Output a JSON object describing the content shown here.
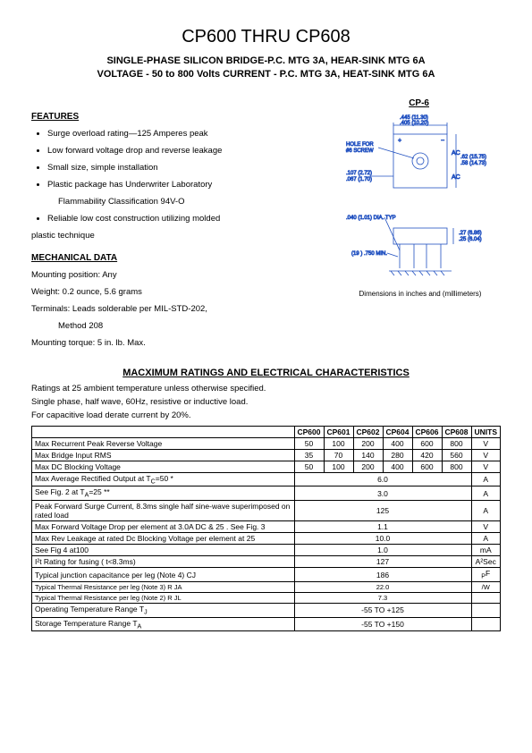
{
  "title": "CP600 THRU CP608",
  "subtitle_line1": "SINGLE-PHASE SILICON BRIDGE-P.C. MTG 3A, HEAR-SINK MTG 6A",
  "subtitle_line2": "VOLTAGE - 50 to 800 Volts  CURRENT - P.C. MTG 3A, HEAT-SINK MTG 6A",
  "cp6_label": "CP-6",
  "features_heading": "FEATURES",
  "features": [
    "Surge overload rating—125 Amperes peak",
    "Low forward voltage drop and reverse leakage",
    "Small size, simple installation",
    "Plastic package has Underwriter Laboratory",
    "Reliable low cost construction utilizing molded"
  ],
  "features_extra1": "Flammability Classification 94V-O",
  "features_extra2": "plastic technique",
  "mech_heading": "MECHANICAL DATA",
  "mech_lines": [
    "Mounting position: Any",
    "Weight: 0.2 ounce, 5.6 grams",
    "Terminals: Leads solderable per MIL-STD-202,",
    "Method 208",
    "Mounting torque: 5 in. lb. Max."
  ],
  "diagram_caption": "Dimensions in inches and (millimeters)",
  "diagram_labels": {
    "top": ".445 (11.30)",
    "top2": ".405 (10.20)",
    "hole": "HOLE FOR #6 SCREW",
    "left1": ".107 (2.72)",
    "left2": ".067 (1.70)",
    "right1": ".62 (15.75)",
    "right2": ".58 (14.73)",
    "ac": "AC",
    "bottom1": ".040 (1.01) DIA. TYP",
    "bottom2": "(19 ) .750 MIN.",
    "side1": ".27 (6.86)",
    "side2": ".25 (6.04)"
  },
  "ratings_heading": "MACXIMUM RATINGS AND ELECTRICAL CHARACTERISTICS",
  "ratings_intro": [
    "Ratings at 25  ambient temperature unless otherwise specified.",
    "Single phase, half wave, 60Hz, resistive or inductive load.",
    "For capacitive load derate current by 20%."
  ],
  "columns": [
    "",
    "CP600",
    "CP601",
    "CP602",
    "CP604",
    "CP606",
    "CP608",
    "UNITS"
  ],
  "rows": [
    {
      "label": "Max Recurrent Peak Reverse Voltage",
      "vals": [
        "50",
        "100",
        "200",
        "400",
        "600",
        "800"
      ],
      "unit": "V"
    },
    {
      "label": "Max Bridge Input RMS",
      "vals": [
        "35",
        "70",
        "140",
        "280",
        "420",
        "560"
      ],
      "unit": "V"
    },
    {
      "label": "Max DC Blocking Voltage",
      "vals": [
        "50",
        "100",
        "200",
        "400",
        "600",
        "800"
      ],
      "unit": "V"
    },
    {
      "label": "Max Average Rectified Output at T<sub>C</sub>=50  *",
      "span": "6.0",
      "unit": "A"
    },
    {
      "label": "See Fig. 2            at T<sub>A</sub>=25  **",
      "span": "3.0",
      "unit": "A"
    },
    {
      "label": "Peak Forward Surge Current, 8.3ms single half sine-wave superimposed on rated load",
      "span": "125",
      "unit": "A"
    },
    {
      "label": "Max Forward Voltage Drop per element at 3.0A DC & 25  . See Fig. 3",
      "span": "1.1",
      "unit": "V"
    },
    {
      "label": "Max Rev Leakage at rated Dc Blocking Voltage per element at 25",
      "span": "10.0",
      "unit": "A"
    },
    {
      "label": "See Fig 4        at100",
      "span": "1.0",
      "unit": "mA"
    },
    {
      "label": "I²t Rating for fusing ( t<8.3ms)",
      "span": "127",
      "unit": "A²Sec"
    },
    {
      "label": "Typical junction capacitance per leg (Note 4) CJ",
      "span": "186",
      "unit": "<sub>P</sub>F"
    },
    {
      "label": "Typical Thermal Resistance per leg (Note 3) R  JA",
      "span": "22.0",
      "unit": "/W",
      "small": true
    },
    {
      "label": "Typical Thermal Resistance per leg (Note 2) R  JL",
      "span": "7.3",
      "unit": "",
      "small": true
    },
    {
      "label": "Operating Temperature Range T<sub>J</sub>",
      "span": "-55 TO +125",
      "unit": ""
    },
    {
      "label": "Storage Temperature Range T<sub>A</sub>",
      "span": "-55 TO +150",
      "unit": ""
    }
  ]
}
